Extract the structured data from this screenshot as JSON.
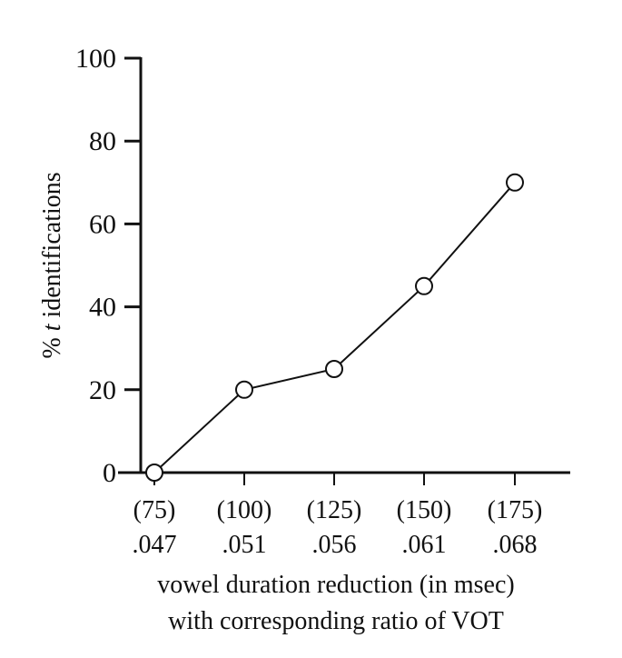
{
  "chart_data": {
    "type": "line",
    "categories": [
      {
        "top": "(75)",
        "bottom": ".047"
      },
      {
        "top": "(100)",
        "bottom": ".051"
      },
      {
        "top": "(125)",
        "bottom": ".056"
      },
      {
        "top": "(150)",
        "bottom": ".061"
      },
      {
        "top": "(175)",
        "bottom": ".068"
      }
    ],
    "values": [
      0,
      20,
      25,
      45,
      70
    ],
    "ylabel": {
      "prefix": "% ",
      "italic": "t",
      "suffix": " identifications"
    },
    "xlabel": [
      "vowel duration reduction (in msec)",
      "with corresponding ratio of VOT"
    ],
    "ylim": [
      0,
      100
    ],
    "yticks": [
      "0",
      "20",
      "40",
      "60",
      "80",
      "100"
    ],
    "marker": "open-circle",
    "grid": false,
    "color": "#111111"
  }
}
